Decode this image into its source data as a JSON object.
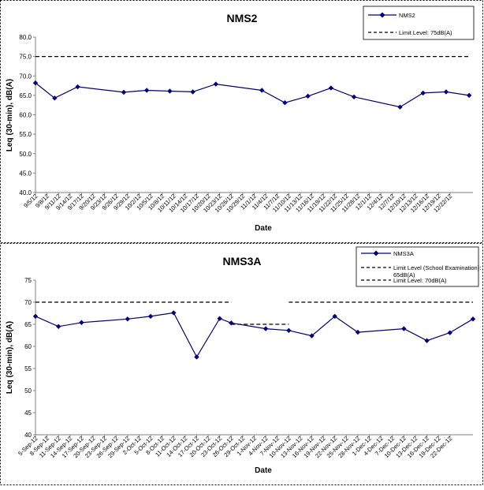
{
  "chart_data": [
    {
      "type": "line",
      "title": "NMS2",
      "xlabel": "Date",
      "ylabel": "Leq (30-min), dB(A)",
      "ylim": [
        40.0,
        80.0
      ],
      "ytick_step": 5,
      "ytick_decimals": 1,
      "grid": false,
      "legend_position": "top-right",
      "categories": [
        "9/5/12",
        "9/8/12",
        "9/11/12",
        "9/14/12",
        "9/17/12",
        "9/20/12",
        "9/23/12",
        "9/26/12",
        "9/29/12",
        "10/2/12",
        "10/5/12",
        "10/8/12",
        "10/11/12",
        "10/14/12",
        "10/17/12",
        "10/20/12",
        "10/23/12",
        "10/26/12",
        "10/29/12",
        "11/1/12",
        "11/4/12",
        "11/7/12",
        "11/10/12",
        "11/13/12",
        "11/16/12",
        "11/19/12",
        "11/22/12",
        "11/25/12",
        "11/28/12",
        "12/1/12",
        "12/4/12",
        "12/7/12",
        "12/10/12",
        "12/13/12",
        "12/16/12",
        "12/19/12",
        "12/22/12"
      ],
      "series": [
        {
          "name": "NMS2",
          "color": "#000080",
          "marker": "diamond",
          "points": [
            {
              "x": "9/5/12",
              "y": 68.2
            },
            {
              "x": "9/10/12",
              "y": 64.3
            },
            {
              "x": "9/16/12",
              "y": 67.2
            },
            {
              "x": "9/28/12",
              "y": 65.8
            },
            {
              "x": "10/4/12",
              "y": 66.3
            },
            {
              "x": "10/10/12",
              "y": 66.1
            },
            {
              "x": "10/16/12",
              "y": 65.9
            },
            {
              "x": "10/22/12",
              "y": 67.9
            },
            {
              "x": "11/3/12",
              "y": 66.3
            },
            {
              "x": "11/9/12",
              "y": 63.1
            },
            {
              "x": "11/15/12",
              "y": 64.8
            },
            {
              "x": "11/21/12",
              "y": 66.9
            },
            {
              "x": "11/27/12",
              "y": 64.6
            },
            {
              "x": "12/9/12",
              "y": 62.0
            },
            {
              "x": "12/15/12",
              "y": 65.6
            },
            {
              "x": "12/21/12",
              "y": 65.9
            },
            {
              "x": "12/27/12",
              "y": 65.0
            }
          ]
        }
      ],
      "limit_lines": [
        {
          "name": "Limit Level: 75dB(A)",
          "segments": [
            {
              "from": "9/5/12",
              "to": "12/27/12",
              "y": 75
            }
          ],
          "color": "#000000"
        }
      ]
    },
    {
      "type": "line",
      "title": "NMS3A",
      "xlabel": "Date",
      "ylabel": "Leq (30-min), dB(A)",
      "ylim": [
        40,
        75
      ],
      "ytick_step": 5,
      "ytick_decimals": 0,
      "grid": false,
      "legend_position": "top-right",
      "categories": [
        "5-Sep-12",
        "8-Sep-12",
        "11-Sep-12",
        "14-Sep-12",
        "17-Sep-12",
        "20-Sep-12",
        "23-Sep-12",
        "26-Sep-12",
        "29-Sep-12",
        "2-Oct-12",
        "5-Oct-12",
        "8-Oct-12",
        "11-Oct-12",
        "14-Oct-12",
        "17-Oct-12",
        "20-Oct-12",
        "23-Oct-12",
        "26-Oct-12",
        "29-Oct-12",
        "1-Nov-12",
        "4-Nov-12",
        "7-Nov-12",
        "10-Nov-12",
        "13-Nov-12",
        "16-Nov-12",
        "19-Nov-12",
        "22-Nov-12",
        "25-Nov-12",
        "28-Nov-12",
        "1-Dec-12",
        "4-Dec-12",
        "7-Dec-12",
        "10-Dec-12",
        "13-Dec-12",
        "16-Dec-12",
        "19-Dec-12",
        "22-Dec-12"
      ],
      "series": [
        {
          "name": "NMS3A",
          "color": "#000080",
          "marker": "diamond",
          "points": [
            {
              "x": "5-Sep-12",
              "y": 66.8
            },
            {
              "x": "11-Sep-12",
              "y": 64.5
            },
            {
              "x": "17-Sep-12",
              "y": 65.4
            },
            {
              "x": "29-Sep-12",
              "y": 66.2
            },
            {
              "x": "5-Oct-12",
              "y": 66.8
            },
            {
              "x": "11-Oct-12",
              "y": 67.6
            },
            {
              "x": "17-Oct-12",
              "y": 57.6
            },
            {
              "x": "23-Oct-12",
              "y": 66.3
            },
            {
              "x": "26-Oct-12",
              "y": 65.3
            },
            {
              "x": "4-Nov-12",
              "y": 64.0
            },
            {
              "x": "10-Nov-12",
              "y": 63.6
            },
            {
              "x": "16-Nov-12",
              "y": 62.4
            },
            {
              "x": "22-Nov-12",
              "y": 66.8
            },
            {
              "x": "28-Nov-12",
              "y": 63.2
            },
            {
              "x": "10-Dec-12",
              "y": 64.0
            },
            {
              "x": "16-Dec-12",
              "y": 61.3
            },
            {
              "x": "22-Dec-12",
              "y": 63.1
            },
            {
              "x": "28-Dec-12",
              "y": 66.2
            }
          ]
        }
      ],
      "limit_lines": [
        {
          "name": "Limit Level (School Examination): 65dB(A)",
          "segments": [
            {
              "from": "26-Oct-12",
              "to": "10-Nov-12",
              "y": 65
            }
          ],
          "color": "#000000"
        },
        {
          "name": "Limit Level: 70dB(A)",
          "segments": [
            {
              "from": "5-Sep-12",
              "to": "26-Oct-12",
              "y": 70
            },
            {
              "from": "10-Nov-12",
              "to": "28-Dec-12",
              "y": 70
            }
          ],
          "color": "#000000"
        }
      ]
    }
  ]
}
